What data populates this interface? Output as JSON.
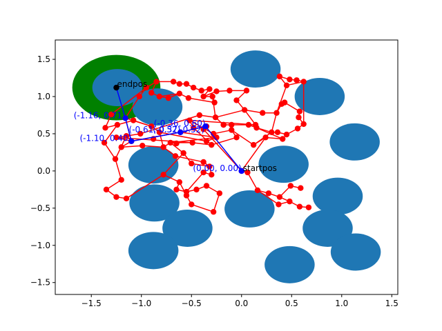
{
  "chart_data": {
    "type": "scatter",
    "title": "",
    "xlabel": "",
    "ylabel": "",
    "xlim": [
      -1.86,
      1.56
    ],
    "ylim": [
      -1.66,
      1.76
    ],
    "x_ticks": [
      -1.5,
      -1.0,
      -0.5,
      0.0,
      0.5,
      1.0,
      1.5
    ],
    "x_tick_labels": [
      "−1.5",
      "−1.0",
      "−0.5",
      "0.0",
      "0.5",
      "1.0",
      "1.5"
    ],
    "y_ticks": [
      -1.5,
      -1.0,
      -0.5,
      0.0,
      0.5,
      1.0,
      1.5
    ],
    "y_tick_labels": [
      "−1.5",
      "−1.0",
      "−0.5",
      "0.0",
      "0.5",
      "1.0",
      "1.5"
    ],
    "grid": false,
    "colors": {
      "obstacle": "#1f77b4",
      "goal_region": "#008000",
      "tree": "#ff0000",
      "path": "#0000ff",
      "marker": "#000000"
    },
    "goal_region": {
      "center": [
        -1.25,
        1.12
      ],
      "radius": 0.44
    },
    "obstacles": [
      {
        "x": 0.14,
        "y": 1.37,
        "r": 0.25
      },
      {
        "x": 0.78,
        "y": 1.0,
        "r": 0.25
      },
      {
        "x": -1.24,
        "y": 1.12,
        "r": 0.25
      },
      {
        "x": -0.84,
        "y": 0.86,
        "r": 0.25
      },
      {
        "x": 1.13,
        "y": 0.39,
        "r": 0.25
      },
      {
        "x": -0.88,
        "y": 0.08,
        "r": 0.25
      },
      {
        "x": 0.42,
        "y": 0.09,
        "r": 0.25
      },
      {
        "x": -0.87,
        "y": -0.43,
        "r": 0.25
      },
      {
        "x": 0.96,
        "y": -0.34,
        "r": 0.25
      },
      {
        "x": 0.08,
        "y": -0.51,
        "r": 0.25
      },
      {
        "x": -0.54,
        "y": -0.77,
        "r": 0.25
      },
      {
        "x": 0.86,
        "y": -0.77,
        "r": 0.25
      },
      {
        "x": -0.88,
        "y": -1.07,
        "r": 0.25
      },
      {
        "x": 1.14,
        "y": -1.09,
        "r": 0.25
      },
      {
        "x": 0.48,
        "y": -1.26,
        "r": 0.25
      }
    ],
    "tree_nodes": [
      [
        0.0,
        0.0
      ],
      [
        -0.38,
        0.56
      ],
      [
        -0.35,
        0.6
      ],
      [
        -0.61,
        0.52
      ],
      [
        -1.1,
        0.4
      ],
      [
        -1.16,
        0.71
      ],
      [
        -1.02,
        1.0
      ],
      [
        -0.95,
        1.12
      ],
      [
        -0.68,
        1.2
      ],
      [
        -0.62,
        1.04
      ],
      [
        -0.53,
        0.98
      ],
      [
        -0.38,
        1.0
      ],
      [
        -0.25,
        1.07
      ],
      [
        -0.12,
        1.08
      ],
      [
        0.03,
        0.82
      ],
      [
        0.14,
        0.62
      ],
      [
        0.21,
        0.78
      ],
      [
        -0.26,
        0.72
      ],
      [
        -0.18,
        0.62
      ],
      [
        -0.42,
        0.75
      ],
      [
        -0.49,
        0.38
      ],
      [
        -0.71,
        0.38
      ],
      [
        -0.82,
        0.52
      ],
      [
        -0.99,
        0.34
      ],
      [
        -1.24,
        0.62
      ],
      [
        -1.36,
        0.58
      ],
      [
        -1.3,
        0.76
      ],
      [
        -1.37,
        0.38
      ],
      [
        -1.26,
        0.16
      ],
      [
        -1.15,
        0.47
      ],
      [
        -0.58,
        0.24
      ],
      [
        -0.5,
        0.1
      ],
      [
        -0.32,
        0.06
      ],
      [
        -0.38,
        0.12
      ],
      [
        -0.66,
        0.2
      ],
      [
        -0.78,
        0.32
      ],
      [
        -1.2,
        -0.12
      ],
      [
        -1.35,
        -0.25
      ],
      [
        -1.25,
        -0.35
      ],
      [
        -1.15,
        -0.37
      ],
      [
        -0.78,
        -0.05
      ],
      [
        -0.62,
        -0.15
      ],
      [
        -0.65,
        -0.25
      ],
      [
        -0.55,
        -0.28
      ],
      [
        -0.45,
        -0.25
      ],
      [
        -0.35,
        -0.2
      ],
      [
        -0.5,
        -0.45
      ],
      [
        -0.55,
        -0.33
      ],
      [
        -0.38,
        -0.02
      ],
      [
        -0.28,
        -0.55
      ],
      [
        -0.3,
        -0.05
      ],
      [
        -0.22,
        -0.3
      ],
      [
        -0.3,
        0.35
      ],
      [
        -0.18,
        0.62
      ],
      [
        -0.1,
        0.62
      ],
      [
        0.07,
        0.62
      ],
      [
        0.15,
        0.58
      ],
      [
        0.3,
        0.52
      ],
      [
        0.36,
        0.52
      ],
      [
        0.45,
        0.49
      ],
      [
        0.56,
        0.57
      ],
      [
        0.62,
        0.63
      ],
      [
        0.57,
        0.72
      ],
      [
        0.58,
        0.8
      ],
      [
        0.41,
        0.43
      ],
      [
        0.24,
        0.45
      ],
      [
        0.12,
        0.35
      ],
      [
        0.35,
        0.78
      ],
      [
        0.45,
        1.15
      ],
      [
        0.38,
        1.27
      ],
      [
        0.48,
        1.23
      ],
      [
        0.55,
        1.22
      ],
      [
        0.62,
        1.2
      ],
      [
        0.43,
        0.92
      ],
      [
        0.4,
        0.9
      ],
      [
        0.06,
        -0.02
      ],
      [
        0.16,
        -0.26
      ],
      [
        0.27,
        -0.3
      ],
      [
        0.38,
        -0.35
      ],
      [
        0.49,
        -0.2
      ],
      [
        0.59,
        -0.23
      ],
      [
        0.37,
        -0.45
      ],
      [
        0.58,
        -0.48
      ],
      [
        0.67,
        -0.49
      ],
      [
        0.48,
        -0.41
      ],
      [
        -0.85,
        1.2
      ],
      [
        -0.82,
        1.0
      ],
      [
        -0.9,
        1.05
      ],
      [
        -0.73,
        0.98
      ],
      [
        -0.62,
        1.17
      ],
      [
        -0.55,
        1.17
      ],
      [
        -0.48,
        1.12
      ],
      [
        -0.4,
        1.08
      ],
      [
        -0.32,
        1.1
      ],
      [
        -0.29,
        1.0
      ],
      [
        -0.27,
        0.92
      ],
      [
        -0.05,
        0.95
      ],
      [
        0.05,
        1.08
      ],
      [
        -0.9,
        0.6
      ],
      [
        -1.08,
        0.68
      ],
      [
        -1.2,
        0.32
      ],
      [
        -1.25,
        0.45
      ],
      [
        -1.01,
        0.5
      ],
      [
        -0.48,
        0.58
      ],
      [
        -0.52,
        0.68
      ],
      [
        -0.28,
        0.5
      ],
      [
        -0.1,
        0.55
      ],
      [
        -0.05,
        0.45
      ],
      [
        -0.25,
        0.45
      ],
      [
        -0.35,
        0.4
      ],
      [
        -0.65,
        0.37
      ],
      [
        -0.88,
        0.43
      ]
    ],
    "tree_edges": [
      [
        0,
        1
      ],
      [
        1,
        2
      ],
      [
        2,
        3
      ],
      [
        3,
        4
      ],
      [
        4,
        5
      ],
      [
        5,
        6
      ],
      [
        6,
        7
      ],
      [
        7,
        85
      ],
      [
        85,
        8
      ],
      [
        8,
        89
      ],
      [
        89,
        90
      ],
      [
        90,
        91
      ],
      [
        91,
        92
      ],
      [
        92,
        93
      ],
      [
        93,
        11
      ],
      [
        11,
        12
      ],
      [
        12,
        13
      ],
      [
        13,
        97
      ],
      [
        97,
        96
      ],
      [
        96,
        14
      ],
      [
        14,
        16
      ],
      [
        14,
        15
      ],
      [
        15,
        55
      ],
      [
        55,
        56
      ],
      [
        56,
        57
      ],
      [
        57,
        58
      ],
      [
        58,
        59
      ],
      [
        59,
        60
      ],
      [
        60,
        61
      ],
      [
        61,
        62
      ],
      [
        62,
        63
      ],
      [
        63,
        73
      ],
      [
        73,
        74
      ],
      [
        74,
        67
      ],
      [
        67,
        16
      ],
      [
        14,
        17
      ],
      [
        17,
        18
      ],
      [
        18,
        53
      ],
      [
        53,
        54
      ],
      [
        54,
        55
      ],
      [
        17,
        19
      ],
      [
        19,
        102
      ],
      [
        102,
        101
      ],
      [
        101,
        20
      ],
      [
        20,
        21
      ],
      [
        21,
        35
      ],
      [
        35,
        22
      ],
      [
        22,
        98
      ],
      [
        98,
        5
      ],
      [
        98,
        99
      ],
      [
        99,
        24
      ],
      [
        24,
        25
      ],
      [
        25,
        26
      ],
      [
        26,
        7
      ],
      [
        24,
        27
      ],
      [
        27,
        28
      ],
      [
        28,
        29
      ],
      [
        29,
        4
      ],
      [
        4,
        100
      ],
      [
        100,
        23
      ],
      [
        23,
        35
      ],
      [
        4,
        101
      ],
      [
        21,
        30
      ],
      [
        30,
        31
      ],
      [
        31,
        32
      ],
      [
        32,
        33
      ],
      [
        33,
        34
      ],
      [
        34,
        35
      ],
      [
        30,
        40
      ],
      [
        40,
        41
      ],
      [
        41,
        42
      ],
      [
        42,
        43
      ],
      [
        43,
        44
      ],
      [
        44,
        45
      ],
      [
        45,
        51
      ],
      [
        51,
        49
      ],
      [
        49,
        46
      ],
      [
        46,
        47
      ],
      [
        47,
        41
      ],
      [
        43,
        48
      ],
      [
        48,
        50
      ],
      [
        50,
        32
      ],
      [
        28,
        36
      ],
      [
        36,
        37
      ],
      [
        37,
        38
      ],
      [
        38,
        39
      ],
      [
        39,
        40
      ],
      [
        0,
        75
      ],
      [
        75,
        76
      ],
      [
        76,
        77
      ],
      [
        77,
        78
      ],
      [
        78,
        79
      ],
      [
        79,
        80
      ],
      [
        76,
        81
      ],
      [
        81,
        84
      ],
      [
        84,
        82
      ],
      [
        82,
        83
      ],
      [
        78,
        84
      ],
      [
        0,
        65
      ],
      [
        65,
        64
      ],
      [
        64,
        59
      ],
      [
        65,
        66
      ],
      [
        66,
        57
      ],
      [
        64,
        56
      ],
      [
        57,
        67
      ],
      [
        67,
        68
      ],
      [
        68,
        69
      ],
      [
        69,
        70
      ],
      [
        70,
        71
      ],
      [
        71,
        72
      ],
      [
        72,
        68
      ],
      [
        61,
        72
      ],
      [
        52,
        103
      ],
      [
        103,
        104
      ],
      [
        104,
        105
      ],
      [
        105,
        106
      ],
      [
        106,
        107
      ],
      [
        107,
        52
      ],
      [
        52,
        20
      ],
      [
        3,
        108
      ],
      [
        108,
        109
      ],
      [
        109,
        22
      ],
      [
        11,
        94
      ],
      [
        94,
        95
      ],
      [
        95,
        10
      ],
      [
        10,
        9
      ],
      [
        9,
        86
      ],
      [
        86,
        87
      ],
      [
        87,
        85
      ],
      [
        88,
        86
      ],
      [
        88,
        9
      ],
      [
        94,
        17
      ],
      [
        104,
        15
      ],
      [
        106,
        66
      ],
      [
        108,
        21
      ]
    ],
    "path": [
      [
        0.0,
        0.0
      ],
      [
        -0.36,
        0.6
      ],
      [
        -0.61,
        0.52
      ],
      [
        -1.1,
        0.4
      ],
      [
        -1.16,
        0.71
      ],
      [
        -1.25,
        1.12
      ]
    ],
    "path_point_labels": [
      "(0.00, 0.00)",
      "(-0.36, 0.60)",
      "(-0.61, 0.52)",
      "(-1.10, 0.40)",
      "(-1.16, 0.71)",
      ""
    ],
    "extra_path_labels": [
      {
        "text": "(-0.37, 0.52)",
        "x": -0.37,
        "y": 0.52
      }
    ],
    "annotations": {
      "start": {
        "text": "startpos",
        "x": 0.0,
        "y": 0.0
      },
      "end": {
        "text": "endpos",
        "x": -1.25,
        "y": 1.12
      }
    }
  }
}
